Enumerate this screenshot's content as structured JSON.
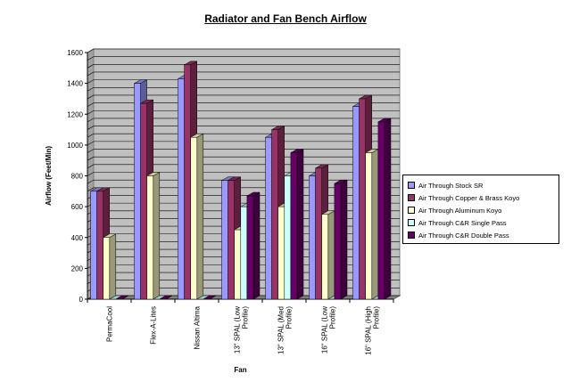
{
  "chart_data": {
    "type": "bar",
    "title": "Radiator and Fan Bench Airflow",
    "xlabel": "Fan",
    "ylabel": "Airflow (Feet/Min)",
    "ylim": [
      0,
      1600
    ],
    "yticks": [
      "0",
      "200",
      "400",
      "600",
      "800",
      "1000",
      "1200",
      "1400",
      "1600"
    ],
    "categories": [
      "PermaCool",
      "Flex-A-Lites",
      "Nissan Altima",
      "13\" SPAL (Low Profile)",
      "13\" SPAL (Med Profile)",
      "16\" SPAL (Low Profile)",
      "16\" SPAL (High Profile)"
    ],
    "category_lines": [
      [
        "PermaCool"
      ],
      [
        "Flex-A-Lites"
      ],
      [
        "Nissan Altima"
      ],
      [
        "13\" SPAL (Low",
        "Profile)"
      ],
      [
        "13\" SPAL (Med",
        "Profile)"
      ],
      [
        "16\" SPAL (Low",
        "Profile)"
      ],
      [
        "16\" SPAL (High",
        "Profile)"
      ]
    ],
    "series": [
      {
        "name": "Air Through Stock SR",
        "color": "#9999ff",
        "values": [
          700,
          1400,
          1430,
          770,
          1050,
          800,
          1250
        ]
      },
      {
        "name": "Air Through Copper & Brass Koyo",
        "color": "#993366",
        "values": [
          700,
          1270,
          1520,
          770,
          1100,
          850,
          1300
        ]
      },
      {
        "name": "Air Through Aluminum Koyo",
        "color": "#ffffcc",
        "values": [
          400,
          800,
          1050,
          450,
          600,
          550,
          950
        ]
      },
      {
        "name": "Air Through C&R Single Pass",
        "color": "#ccffff",
        "values": [
          0,
          0,
          0,
          600,
          800,
          0,
          0
        ]
      },
      {
        "name": "Air Through C&R Double Pass",
        "color": "#660066",
        "values": [
          0,
          0,
          0,
          670,
          950,
          750,
          1150
        ]
      }
    ],
    "grid": true,
    "legend_position": "right",
    "plot_background": "#c0c0c0"
  }
}
